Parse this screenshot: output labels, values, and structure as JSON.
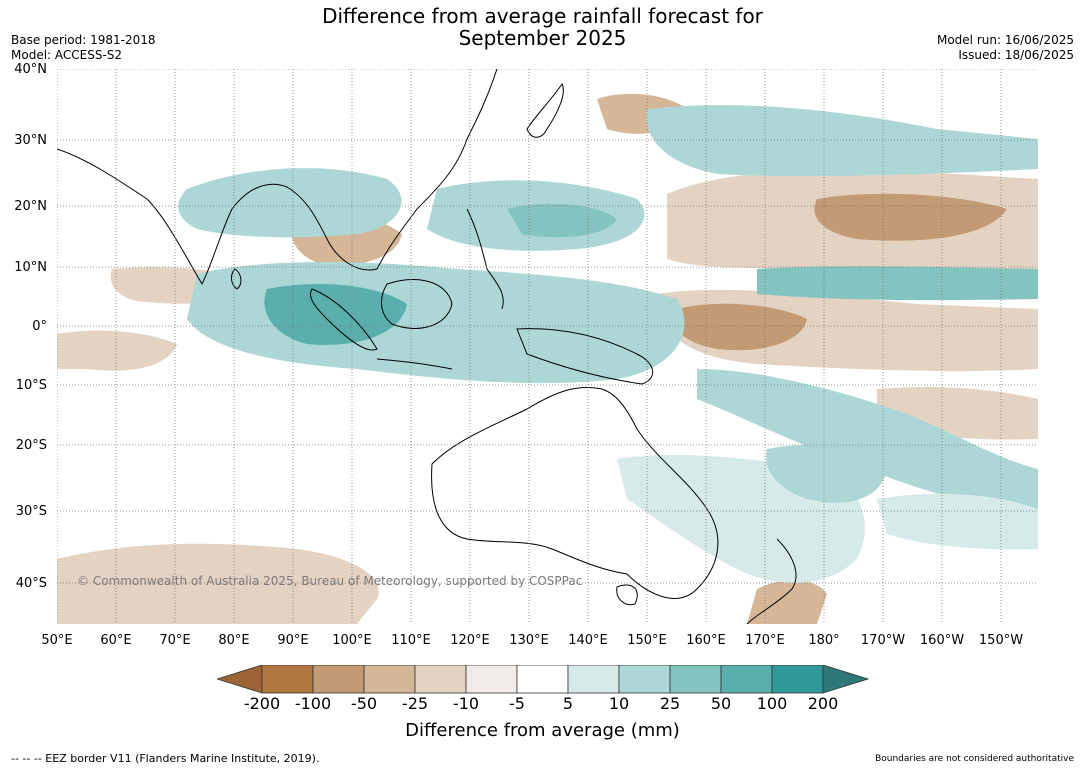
{
  "title_line1": "Difference from average rainfall forecast for",
  "title_line2": "September 2025",
  "base_period": "Base period: 1981-2018",
  "model": "Model: ACCESS-S2",
  "model_run": "Model run: 16/06/2025",
  "issued": "Issued: 18/06/2025",
  "lat_labels": [
    "40°N",
    "30°N",
    "20°N",
    "10°N",
    "0°",
    "10°S",
    "20°S",
    "30°S",
    "40°S"
  ],
  "lon_labels": [
    "50°E",
    "60°E",
    "70°E",
    "80°E",
    "90°E",
    "100°E",
    "110°E",
    "120°E",
    "130°E",
    "140°E",
    "150°E",
    "160°E",
    "170°E",
    "180°",
    "170°W",
    "160°W",
    "150°W"
  ],
  "copyright": "© Commonwealth of Australia 2025, Bureau of Meteorology, supported by COSPPac",
  "colorbar": {
    "label": "Difference from average (mm)",
    "ticks": [
      "-200",
      "-100",
      "-50",
      "-25",
      "-10",
      "-5",
      "5",
      "10",
      "25",
      "50",
      "100",
      "200"
    ],
    "colors": [
      "#9c6434",
      "#b07840",
      "#c29a74",
      "#d5b697",
      "#e4d3c3",
      "#f1ece7",
      "#ffffff",
      "#d6eaea",
      "#add7d6",
      "#83c3c0",
      "#5aafad",
      "#31999a",
      "#2e7878"
    ]
  },
  "eez_note": "-- -- -- EEZ border V11 (Flanders Marine Institute, 2019).",
  "disclaimer": "Boundaries are not considered authoritative"
}
